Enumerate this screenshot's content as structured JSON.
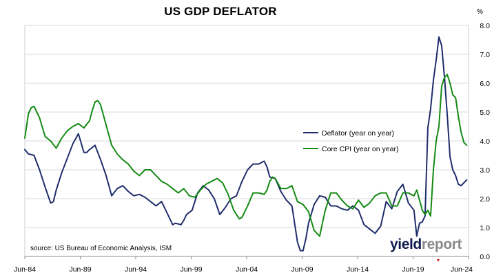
{
  "title": "US GDP DEFLATOR",
  "unit": "%",
  "source": "source: US Bureau of Economic Analysis, ISM",
  "logo": {
    "part1": "yield",
    "part2": "report"
  },
  "colors": {
    "deflator": "#1f2c6b",
    "core_cpi": "#138a13",
    "grid": "#d9d9d9",
    "axis": "#888888"
  },
  "chart_data": {
    "type": "line",
    "title": "US GDP DEFLATOR",
    "ylabel": "%",
    "xlabel": "",
    "ylim": [
      0.0,
      8.0
    ],
    "xlim": [
      1984.42,
      2024.42
    ],
    "y_ticks": [
      "0.0",
      "1.0",
      "2.0",
      "3.0",
      "4.0",
      "5.0",
      "6.0",
      "7.0",
      "8.0"
    ],
    "x_ticks": [
      {
        "x": 1984.42,
        "label": "Jun-84"
      },
      {
        "x": 1989.42,
        "label": "Jun-89"
      },
      {
        "x": 1994.42,
        "label": "Jun-94"
      },
      {
        "x": 1999.42,
        "label": "Jun-99"
      },
      {
        "x": 2004.42,
        "label": "Jun-04"
      },
      {
        "x": 2009.42,
        "label": "Jun-09"
      },
      {
        "x": 2014.42,
        "label": "Jun-14"
      },
      {
        "x": 2019.42,
        "label": "Jun-19"
      },
      {
        "x": 2024.42,
        "label": "Jun-24"
      }
    ],
    "grid": "horizontal",
    "legend": "right",
    "series": [
      {
        "name": "Deflator (year on year)",
        "color": "#1f2c6b",
        "x": [
          1984.42,
          1984.75,
          1985.25,
          1985.75,
          1986.25,
          1986.75,
          1987.0,
          1987.25,
          1987.75,
          1988.25,
          1988.75,
          1989.25,
          1989.75,
          1990.0,
          1990.25,
          1990.75,
          1991.25,
          1991.75,
          1992.25,
          1992.75,
          1993.25,
          1993.75,
          1994.25,
          1994.75,
          1995.25,
          1995.75,
          1996.25,
          1996.75,
          1997.25,
          1997.75,
          1998.0,
          1998.5,
          1998.75,
          1999.0,
          1999.5,
          2000.0,
          2000.5,
          2001.0,
          2001.5,
          2002.0,
          2002.5,
          2003.0,
          2003.5,
          2004.0,
          2004.5,
          2005.0,
          2005.5,
          2006.0,
          2006.25,
          2006.5,
          2007.0,
          2007.5,
          2008.0,
          2008.5,
          2009.0,
          2009.25,
          2009.5,
          2009.75,
          2010.0,
          2010.5,
          2011.0,
          2011.5,
          2012.0,
          2012.5,
          2013.0,
          2013.5,
          2014.0,
          2014.5,
          2015.0,
          2015.5,
          2016.0,
          2016.5,
          2017.0,
          2017.5,
          2018.0,
          2018.5,
          2019.0,
          2019.5,
          2019.75,
          2020.0,
          2020.25,
          2020.5,
          2020.75,
          2021.0,
          2021.25,
          2021.5,
          2021.75,
          2022.0,
          2022.25,
          2022.5,
          2022.75,
          2023.0,
          2023.25,
          2023.5,
          2023.75,
          2024.0,
          2024.25
        ],
        "values": [
          3.7,
          3.55,
          3.5,
          3.0,
          2.4,
          1.85,
          1.9,
          2.3,
          2.9,
          3.4,
          3.9,
          4.25,
          3.6,
          3.6,
          3.7,
          3.85,
          3.35,
          2.8,
          2.1,
          2.35,
          2.45,
          2.25,
          2.1,
          2.15,
          2.05,
          1.9,
          1.75,
          1.9,
          1.5,
          1.1,
          1.15,
          1.1,
          1.25,
          1.45,
          1.6,
          2.2,
          2.45,
          2.3,
          2.0,
          1.45,
          1.7,
          2.0,
          2.1,
          2.6,
          3.0,
          3.2,
          3.2,
          3.3,
          3.1,
          2.75,
          2.7,
          2.25,
          1.95,
          1.75,
          0.5,
          0.2,
          0.2,
          0.6,
          1.15,
          1.8,
          2.1,
          2.05,
          1.75,
          1.75,
          1.65,
          1.6,
          1.75,
          1.6,
          1.1,
          0.95,
          0.8,
          1.05,
          1.9,
          1.65,
          2.25,
          2.5,
          1.85,
          1.6,
          0.7,
          1.15,
          1.2,
          1.4,
          4.45,
          5.1,
          6.1,
          6.8,
          7.6,
          7.3,
          6.2,
          4.9,
          3.45,
          3.0,
          2.8,
          2.5,
          2.45,
          2.55,
          2.65
        ]
      },
      {
        "name": "Core CPI (year on year)",
        "color": "#138a13",
        "x": [
          1984.42,
          1984.75,
          1985.0,
          1985.25,
          1985.75,
          1986.25,
          1986.75,
          1987.25,
          1987.75,
          1988.25,
          1988.75,
          1989.25,
          1989.75,
          1990.25,
          1990.5,
          1990.75,
          1991.0,
          1991.25,
          1991.75,
          1992.25,
          1992.75,
          1993.25,
          1993.75,
          1994.25,
          1994.75,
          1995.25,
          1995.75,
          1996.25,
          1996.75,
          1997.25,
          1997.75,
          1998.25,
          1998.75,
          1999.25,
          1999.75,
          2000.25,
          2000.75,
          2001.25,
          2001.75,
          2002.25,
          2002.75,
          2003.25,
          2003.75,
          2004.0,
          2004.5,
          2005.0,
          2005.5,
          2006.0,
          2006.25,
          2006.5,
          2006.75,
          2007.0,
          2007.5,
          2008.0,
          2008.5,
          2009.0,
          2009.5,
          2010.0,
          2010.5,
          2011.0,
          2011.5,
          2012.0,
          2012.5,
          2013.0,
          2013.5,
          2014.0,
          2014.5,
          2015.0,
          2015.5,
          2016.0,
          2016.5,
          2017.0,
          2017.5,
          2018.0,
          2018.5,
          2019.0,
          2019.5,
          2019.75,
          2020.25,
          2020.5,
          2020.75,
          2021.0,
          2021.25,
          2021.5,
          2021.75,
          2022.0,
          2022.25,
          2022.5,
          2022.75,
          2023.0,
          2023.25,
          2023.5,
          2023.75,
          2024.0,
          2024.25
        ],
        "values": [
          4.1,
          4.95,
          5.15,
          5.2,
          4.8,
          4.15,
          4.0,
          3.75,
          4.1,
          4.35,
          4.5,
          4.6,
          4.45,
          4.7,
          5.05,
          5.35,
          5.4,
          5.25,
          4.55,
          3.85,
          3.55,
          3.35,
          3.2,
          2.95,
          2.8,
          3.0,
          3.0,
          2.8,
          2.6,
          2.5,
          2.35,
          2.2,
          2.35,
          2.1,
          2.05,
          2.3,
          2.5,
          2.6,
          2.7,
          2.55,
          2.15,
          1.6,
          1.3,
          1.35,
          1.75,
          2.2,
          2.2,
          2.15,
          2.3,
          2.6,
          2.75,
          2.7,
          2.35,
          2.35,
          2.45,
          1.9,
          1.8,
          1.55,
          0.9,
          0.7,
          1.6,
          2.2,
          2.2,
          1.95,
          1.75,
          1.65,
          1.95,
          1.7,
          1.85,
          2.1,
          2.2,
          2.2,
          1.75,
          1.75,
          2.2,
          2.2,
          2.1,
          2.3,
          1.6,
          1.45,
          1.6,
          1.4,
          3.0,
          4.0,
          4.5,
          5.9,
          6.2,
          6.3,
          6.0,
          5.6,
          5.5,
          4.85,
          4.3,
          3.95,
          3.85
        ]
      }
    ]
  }
}
